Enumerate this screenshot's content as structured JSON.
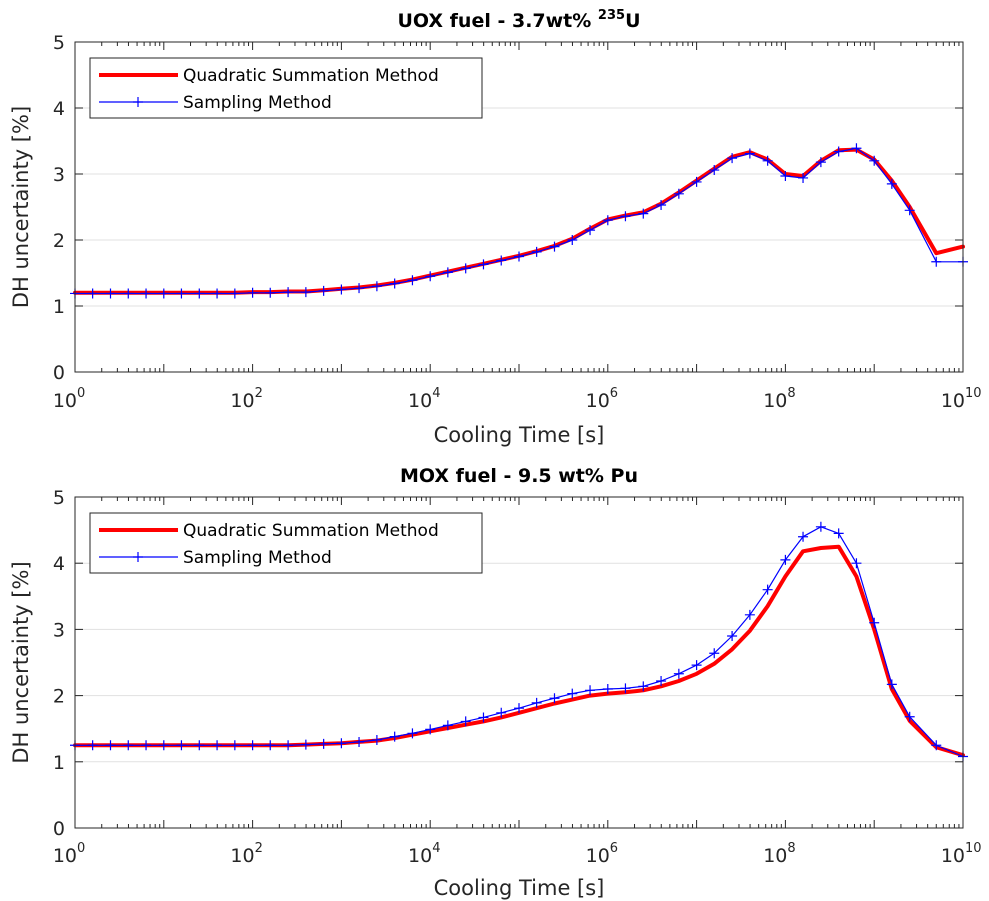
{
  "chart_data": [
    {
      "type": "line",
      "title": "UOX fuel - 3.7wt% ",
      "title_sup": "235",
      "title_tail": "U",
      "xlabel": "Cooling Time [s]",
      "ylabel": "DH uncertainty [%]",
      "xscale": "log",
      "xlim": [
        1,
        10000000000
      ],
      "ylim": [
        0,
        5
      ],
      "xticks": [
        {
          "base": "10",
          "exp": "0"
        },
        {
          "base": "10",
          "exp": "2"
        },
        {
          "base": "10",
          "exp": "4"
        },
        {
          "base": "10",
          "exp": "6"
        },
        {
          "base": "10",
          "exp": "8"
        },
        {
          "base": "10",
          "exp": "10"
        }
      ],
      "yticks": [
        "0",
        "1",
        "2",
        "3",
        "4",
        "5"
      ],
      "grid": "horizontal",
      "legend": "top-left",
      "x": [
        1,
        1.58,
        2.51,
        3.98,
        6.31,
        10,
        15.8,
        25.1,
        39.8,
        63.1,
        100,
        158,
        251,
        398,
        631,
        1000,
        1580,
        2510,
        3980,
        6310,
        10000,
        15800,
        25100,
        39800,
        63100,
        100000,
        158000,
        251000,
        398000,
        631000,
        1000000,
        1580000,
        2510000,
        3980000,
        6310000,
        10000000,
        15800000,
        25100000,
        39800000,
        63100000,
        100000000,
        158000000,
        251000000,
        398000000,
        631000000,
        1000000000,
        1580000000,
        2510000000,
        5000000000,
        10000000000
      ],
      "series": [
        {
          "name": "Quadratic Summation Method",
          "color": "#ff0000",
          "values": [
            1.2,
            1.2,
            1.2,
            1.2,
            1.2,
            1.2,
            1.2,
            1.2,
            1.2,
            1.2,
            1.21,
            1.21,
            1.22,
            1.22,
            1.24,
            1.26,
            1.28,
            1.31,
            1.35,
            1.4,
            1.46,
            1.52,
            1.58,
            1.64,
            1.7,
            1.76,
            1.83,
            1.91,
            2.02,
            2.17,
            2.31,
            2.37,
            2.42,
            2.55,
            2.72,
            2.9,
            3.08,
            3.26,
            3.33,
            3.22,
            3.0,
            2.97,
            3.2,
            3.36,
            3.37,
            3.22,
            2.9,
            2.5,
            1.8,
            1.9
          ]
        },
        {
          "name": "Sampling Method",
          "color": "#0000ff",
          "values": [
            1.19,
            1.19,
            1.19,
            1.19,
            1.19,
            1.19,
            1.19,
            1.19,
            1.19,
            1.19,
            1.2,
            1.2,
            1.21,
            1.21,
            1.23,
            1.25,
            1.27,
            1.3,
            1.34,
            1.39,
            1.45,
            1.51,
            1.57,
            1.63,
            1.69,
            1.75,
            1.82,
            1.9,
            2.0,
            2.15,
            2.3,
            2.36,
            2.4,
            2.53,
            2.7,
            2.88,
            3.06,
            3.24,
            3.31,
            3.2,
            2.97,
            2.94,
            3.18,
            3.34,
            3.39,
            3.2,
            2.85,
            2.45,
            1.67,
            1.67
          ]
        }
      ]
    },
    {
      "type": "line",
      "title": "MOX fuel - 9.5 wt% Pu",
      "title_sup": "",
      "title_tail": "",
      "xlabel": "Cooling Time [s]",
      "ylabel": "DH uncertainty [%]",
      "xscale": "log",
      "xlim": [
        1,
        10000000000
      ],
      "ylim": [
        0,
        5
      ],
      "xticks": [
        {
          "base": "10",
          "exp": "0"
        },
        {
          "base": "10",
          "exp": "2"
        },
        {
          "base": "10",
          "exp": "4"
        },
        {
          "base": "10",
          "exp": "6"
        },
        {
          "base": "10",
          "exp": "8"
        },
        {
          "base": "10",
          "exp": "10"
        }
      ],
      "yticks": [
        "0",
        "1",
        "2",
        "3",
        "4",
        "5"
      ],
      "grid": "horizontal",
      "legend": "top-left",
      "x": [
        1,
        1.58,
        2.51,
        3.98,
        6.31,
        10,
        15.8,
        25.1,
        39.8,
        63.1,
        100,
        158,
        251,
        398,
        631,
        1000,
        1580,
        2510,
        3980,
        6310,
        10000,
        15800,
        25100,
        39800,
        63100,
        100000,
        158000,
        251000,
        398000,
        631000,
        1000000,
        1580000,
        2510000,
        3980000,
        6310000,
        10000000,
        15800000,
        25100000,
        39800000,
        63100000,
        100000000,
        158000000,
        251000000,
        398000000,
        631000000,
        1000000000,
        1580000000,
        2510000000,
        5000000000,
        10000000000
      ],
      "series": [
        {
          "name": "Quadratic Summation Method",
          "color": "#ff0000",
          "values": [
            1.25,
            1.25,
            1.25,
            1.25,
            1.25,
            1.25,
            1.25,
            1.25,
            1.25,
            1.25,
            1.25,
            1.25,
            1.25,
            1.26,
            1.27,
            1.28,
            1.3,
            1.32,
            1.36,
            1.41,
            1.46,
            1.51,
            1.56,
            1.61,
            1.67,
            1.74,
            1.81,
            1.88,
            1.94,
            2.0,
            2.03,
            2.05,
            2.08,
            2.14,
            2.22,
            2.33,
            2.48,
            2.7,
            2.98,
            3.35,
            3.8,
            4.18,
            4.23,
            4.25,
            3.8,
            3.0,
            2.1,
            1.62,
            1.22,
            1.1
          ]
        },
        {
          "name": "Sampling Method",
          "color": "#0000ff",
          "values": [
            1.25,
            1.25,
            1.25,
            1.25,
            1.25,
            1.25,
            1.25,
            1.25,
            1.25,
            1.25,
            1.25,
            1.25,
            1.25,
            1.26,
            1.27,
            1.28,
            1.3,
            1.33,
            1.38,
            1.43,
            1.49,
            1.55,
            1.61,
            1.67,
            1.74,
            1.81,
            1.89,
            1.96,
            2.03,
            2.08,
            2.1,
            2.11,
            2.14,
            2.22,
            2.33,
            2.46,
            2.64,
            2.9,
            3.22,
            3.6,
            4.05,
            4.4,
            4.55,
            4.45,
            4.0,
            3.1,
            2.17,
            1.68,
            1.25,
            1.08
          ]
        }
      ]
    }
  ]
}
